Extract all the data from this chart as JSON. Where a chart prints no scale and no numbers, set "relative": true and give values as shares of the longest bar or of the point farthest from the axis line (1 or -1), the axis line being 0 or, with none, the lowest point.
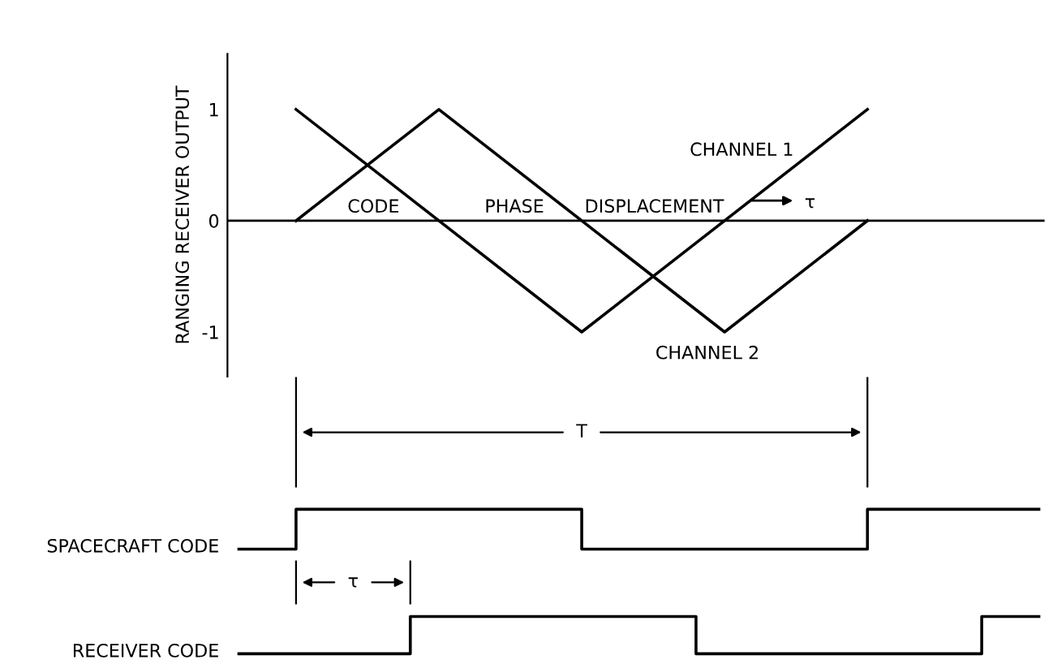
{
  "chart_data": [
    {
      "type": "line",
      "ylabel": "RANGING RECEIVER OUTPUT",
      "categories": [
        null,
        null,
        null,
        null,
        null
      ],
      "ylim": [
        -1.4,
        1.5
      ],
      "yticks": [
        {
          "value": -1,
          "label": "-1"
        },
        0,
        1
      ],
      "grid": false,
      "legend": false,
      "ref_lines": [
        {
          "axis": "y",
          "value": 0
        }
      ],
      "line_style": "solid",
      "marker": "none",
      "series": [
        {
          "name": "CHANNEL 1",
          "color": "#000000",
          "values": [
            1,
            0,
            -1,
            0,
            1
          ]
        },
        {
          "name": "CHANNEL 2",
          "color": "#000000",
          "values": [
            0,
            1,
            0,
            -1,
            0
          ]
        }
      ],
      "annotations": [
        "CODE",
        "PHASE",
        "DISPLACEMENT",
        "τ"
      ]
    },
    {
      "type": "step",
      "ylabel": "SPACECRAFT CODE",
      "relative": true,
      "categories": [
        null,
        null,
        null,
        null,
        null,
        null,
        null,
        null,
        null,
        null,
        null,
        null,
        null,
        null,
        null
      ],
      "series": [
        {
          "color": "#000000",
          "values": [
            0,
            1,
            1,
            1,
            1,
            1,
            0,
            0,
            0,
            0,
            0,
            1,
            1,
            1,
            1
          ]
        }
      ],
      "annotations": [
        "T"
      ]
    },
    {
      "type": "step",
      "ylabel": "RECEIVER CODE",
      "relative": true,
      "categories": [
        null,
        null,
        null,
        null,
        null,
        null,
        null,
        null,
        null,
        null,
        null,
        null,
        null,
        null,
        null
      ],
      "series": [
        {
          "color": "#000000",
          "values": [
            0,
            0,
            0,
            1,
            1,
            1,
            1,
            1,
            0,
            0,
            0,
            0,
            0,
            1,
            1
          ]
        }
      ],
      "annotations": [
        "τ"
      ]
    }
  ]
}
